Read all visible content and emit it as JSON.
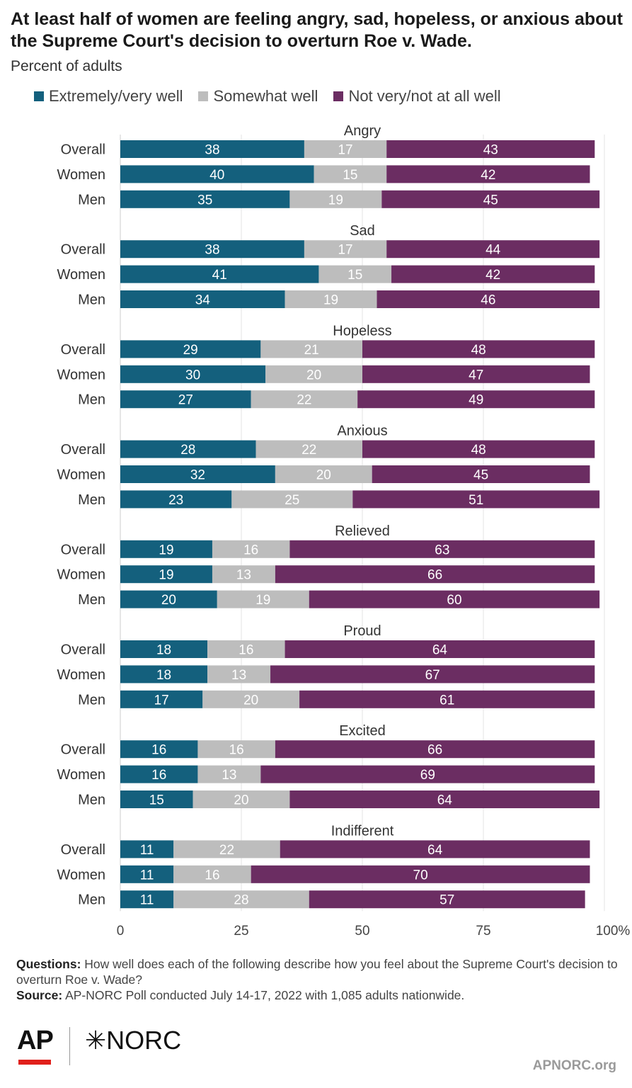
{
  "title": "At least half of women are feeling angry, sad, hopeless, or anxious about the Supreme Court's decision to overturn Roe v. Wade.",
  "subtitle": "Percent of adults",
  "notes": {
    "questions_label": "Questions:",
    "questions_text": "How well does each of the following describe how you feel about the Supreme Court's decision to overturn Roe v. Wade?",
    "source_label": "Source:",
    "source_text": "AP-NORC Poll conducted July 14-17, 2022 with 1,085 adults nationwide."
  },
  "logos": {
    "ap": "AP",
    "norc": "✳NORC"
  },
  "site": "APNORC.org",
  "chart_data": {
    "type": "bar",
    "orientation": "horizontal",
    "stacked": true,
    "legend_position": "top",
    "grid": true,
    "xlim": [
      0,
      100
    ],
    "xticks": [
      {
        "value": 0,
        "label": "0"
      },
      {
        "value": 25,
        "label": "25"
      },
      {
        "value": 50,
        "label": "50"
      },
      {
        "value": 75,
        "label": "75"
      },
      {
        "value": 100,
        "label": "100%"
      }
    ],
    "series": [
      {
        "name": "Extremely/very well",
        "color": "#14607d"
      },
      {
        "name": "Somewhat well",
        "color": "#bdbdbd"
      },
      {
        "name": "Not very/not at all well",
        "color": "#6b2d62"
      }
    ],
    "groups": [
      {
        "name": "Angry",
        "rows": [
          {
            "label": "Overall",
            "values": [
              38,
              17,
              43
            ]
          },
          {
            "label": "Women",
            "values": [
              40,
              15,
              42
            ]
          },
          {
            "label": "Men",
            "values": [
              35,
              19,
              45
            ]
          }
        ]
      },
      {
        "name": "Sad",
        "rows": [
          {
            "label": "Overall",
            "values": [
              38,
              17,
              44
            ]
          },
          {
            "label": "Women",
            "values": [
              41,
              15,
              42
            ]
          },
          {
            "label": "Men",
            "values": [
              34,
              19,
              46
            ]
          }
        ]
      },
      {
        "name": "Hopeless",
        "rows": [
          {
            "label": "Overall",
            "values": [
              29,
              21,
              48
            ]
          },
          {
            "label": "Women",
            "values": [
              30,
              20,
              47
            ]
          },
          {
            "label": "Men",
            "values": [
              27,
              22,
              49
            ]
          }
        ]
      },
      {
        "name": "Anxious",
        "rows": [
          {
            "label": "Overall",
            "values": [
              28,
              22,
              48
            ]
          },
          {
            "label": "Women",
            "values": [
              32,
              20,
              45
            ]
          },
          {
            "label": "Men",
            "values": [
              23,
              25,
              51
            ]
          }
        ]
      },
      {
        "name": "Relieved",
        "rows": [
          {
            "label": "Overall",
            "values": [
              19,
              16,
              63
            ]
          },
          {
            "label": "Women",
            "values": [
              19,
              13,
              66
            ]
          },
          {
            "label": "Men",
            "values": [
              20,
              19,
              60
            ]
          }
        ]
      },
      {
        "name": "Proud",
        "rows": [
          {
            "label": "Overall",
            "values": [
              18,
              16,
              64
            ]
          },
          {
            "label": "Women",
            "values": [
              18,
              13,
              67
            ]
          },
          {
            "label": "Men",
            "values": [
              17,
              20,
              61
            ]
          }
        ]
      },
      {
        "name": "Excited",
        "rows": [
          {
            "label": "Overall",
            "values": [
              16,
              16,
              66
            ]
          },
          {
            "label": "Women",
            "values": [
              16,
              13,
              69
            ]
          },
          {
            "label": "Men",
            "values": [
              15,
              20,
              64
            ]
          }
        ]
      },
      {
        "name": "Indifferent",
        "rows": [
          {
            "label": "Overall",
            "values": [
              11,
              22,
              64
            ]
          },
          {
            "label": "Women",
            "values": [
              11,
              16,
              70
            ]
          },
          {
            "label": "Men",
            "values": [
              11,
              28,
              57
            ]
          }
        ]
      }
    ]
  }
}
